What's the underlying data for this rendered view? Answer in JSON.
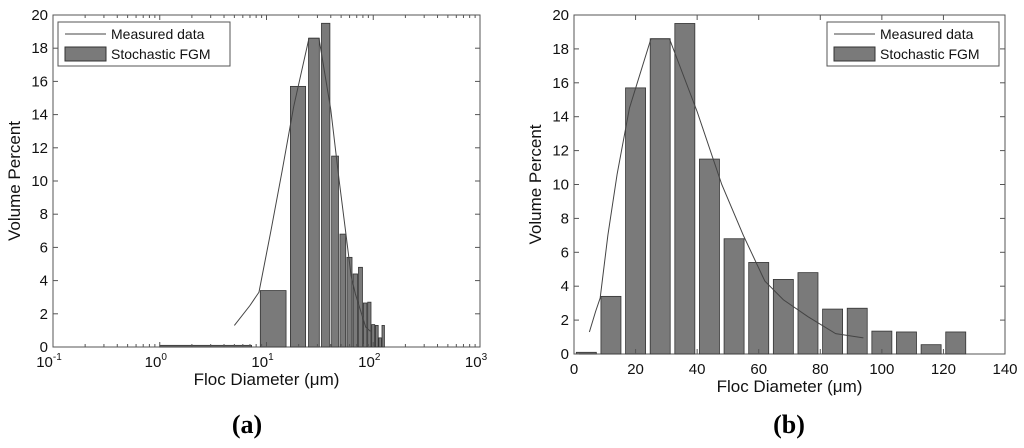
{
  "chart_data": [
    {
      "type": "bar",
      "panel_label": "(a)",
      "xlabel": "Floc Diameter (μm)",
      "ylabel": "Volume Percent",
      "xscale": "log",
      "xlim": [
        0.1,
        1000
      ],
      "ylim": [
        0,
        20
      ],
      "xticks": [
        "10^-1",
        "10^0",
        "10^1",
        "10^2",
        "10^3"
      ],
      "yticks": [
        0,
        2,
        4,
        6,
        8,
        10,
        12,
        14,
        16,
        18,
        20
      ],
      "grid": false,
      "legend_position": "top-left",
      "bar_color": "#7a7a7a",
      "line_color": "#444444",
      "series": [
        {
          "name": "Measured data",
          "kind": "line",
          "x": [
            5,
            7,
            8.5,
            11,
            14,
            18,
            25,
            31,
            40,
            48,
            55,
            62,
            68,
            76,
            85,
            94
          ],
          "y": [
            1.3,
            2.5,
            3.3,
            7.0,
            10.6,
            14.5,
            18.6,
            18.6,
            14.3,
            10.0,
            7.0,
            4.3,
            3.2,
            2.2,
            1.2,
            0.95
          ]
        },
        {
          "name": "Stochastic FGM",
          "kind": "bar",
          "x": [
            4,
            12,
            20,
            28,
            36,
            44,
            52,
            60,
            68,
            76,
            84,
            92,
            100,
            108,
            116,
            124
          ],
          "y": [
            0.1,
            3.4,
            15.7,
            18.6,
            19.5,
            11.5,
            6.8,
            5.4,
            4.4,
            4.8,
            2.65,
            2.7,
            1.35,
            1.3,
            0.55,
            1.3
          ]
        }
      ]
    },
    {
      "type": "bar",
      "panel_label": "(b)",
      "xlabel": "Floc Diameter (μm)",
      "ylabel": "Volume Percent",
      "xscale": "linear",
      "xlim": [
        0,
        140
      ],
      "ylim": [
        0,
        20
      ],
      "xticks": [
        "0",
        "20",
        "40",
        "60",
        "80",
        "100",
        "120",
        "140"
      ],
      "yticks": [
        0,
        2,
        4,
        6,
        8,
        10,
        12,
        14,
        16,
        18,
        20
      ],
      "grid": false,
      "legend_position": "top-right",
      "bar_color": "#7a7a7a",
      "line_color": "#444444",
      "series": [
        {
          "name": "Measured data",
          "kind": "line",
          "x": [
            5,
            7,
            8.5,
            11,
            14,
            18,
            25,
            31,
            40,
            48,
            55,
            62,
            68,
            76,
            85,
            94
          ],
          "y": [
            1.3,
            2.5,
            3.3,
            7.0,
            10.6,
            14.5,
            18.6,
            18.6,
            14.3,
            10.0,
            7.0,
            4.3,
            3.2,
            2.2,
            1.2,
            0.95
          ]
        },
        {
          "name": "Stochastic FGM",
          "kind": "bar",
          "x": [
            4,
            12,
            20,
            28,
            36,
            44,
            52,
            60,
            68,
            76,
            84,
            92,
            100,
            108,
            116,
            124
          ],
          "y": [
            0.1,
            3.4,
            15.7,
            18.6,
            19.5,
            11.5,
            6.8,
            5.4,
            4.4,
            4.8,
            2.65,
            2.7,
            1.35,
            1.3,
            0.55,
            1.3
          ]
        }
      ]
    }
  ]
}
